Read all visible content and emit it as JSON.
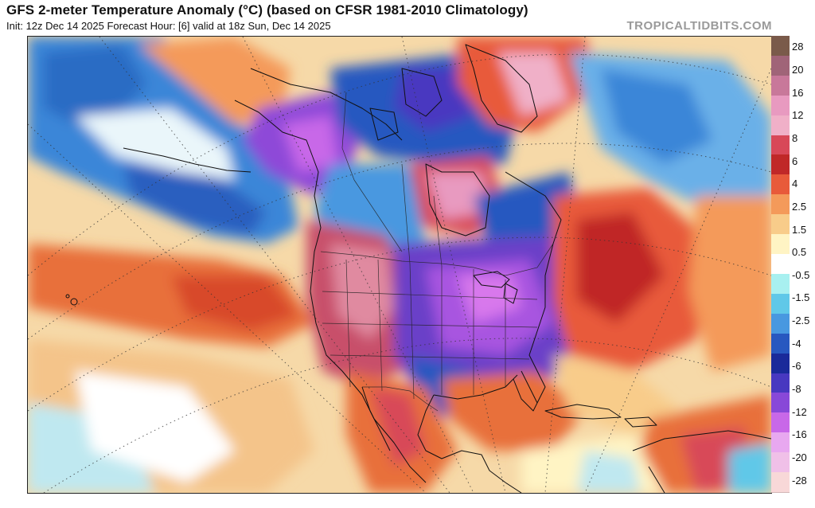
{
  "header": {
    "title": "GFS 2-meter Temperature Anomaly (°C) (based on CFSR 1981-2010 Climatology)",
    "subtitle": "Init: 12z Dec 14 2025   Forecast Hour: [6]   valid at 18z Sun, Dec 14 2025",
    "brand": "TROPICALTIDBITS.COM"
  },
  "map": {
    "projection": "polar stereographic (North America)",
    "field": "2-meter temperature anomaly",
    "features": [
      "coastlines",
      "country borders",
      "state and province borders",
      "lat-lon grid (dotted)"
    ]
  },
  "legend": {
    "labels": [
      "28",
      "20",
      "16",
      "12",
      "8",
      "6",
      "4",
      "2.5",
      "1.5",
      "0.5",
      "-0.5",
      "-1.5",
      "-2.5",
      "-4",
      "-6",
      "-8",
      "-12",
      "-16",
      "-20",
      "-28"
    ],
    "colors": [
      "#7a5a4a",
      "#a06478",
      "#c8789a",
      "#e89ac0",
      "#f0b0c8",
      "#d84858",
      "#c02828",
      "#e85a3a",
      "#f49a5a",
      "#f8cc8a",
      "#fff4c4",
      "#ffffff",
      "#a8f0f0",
      "#60c8e8",
      "#4898e0",
      "#2858c0",
      "#1a2a9a",
      "#4838c0",
      "#8848d8",
      "#c868e8",
      "#e8a8f0",
      "#f0c0e8",
      "#f8d8d8"
    ]
  }
}
